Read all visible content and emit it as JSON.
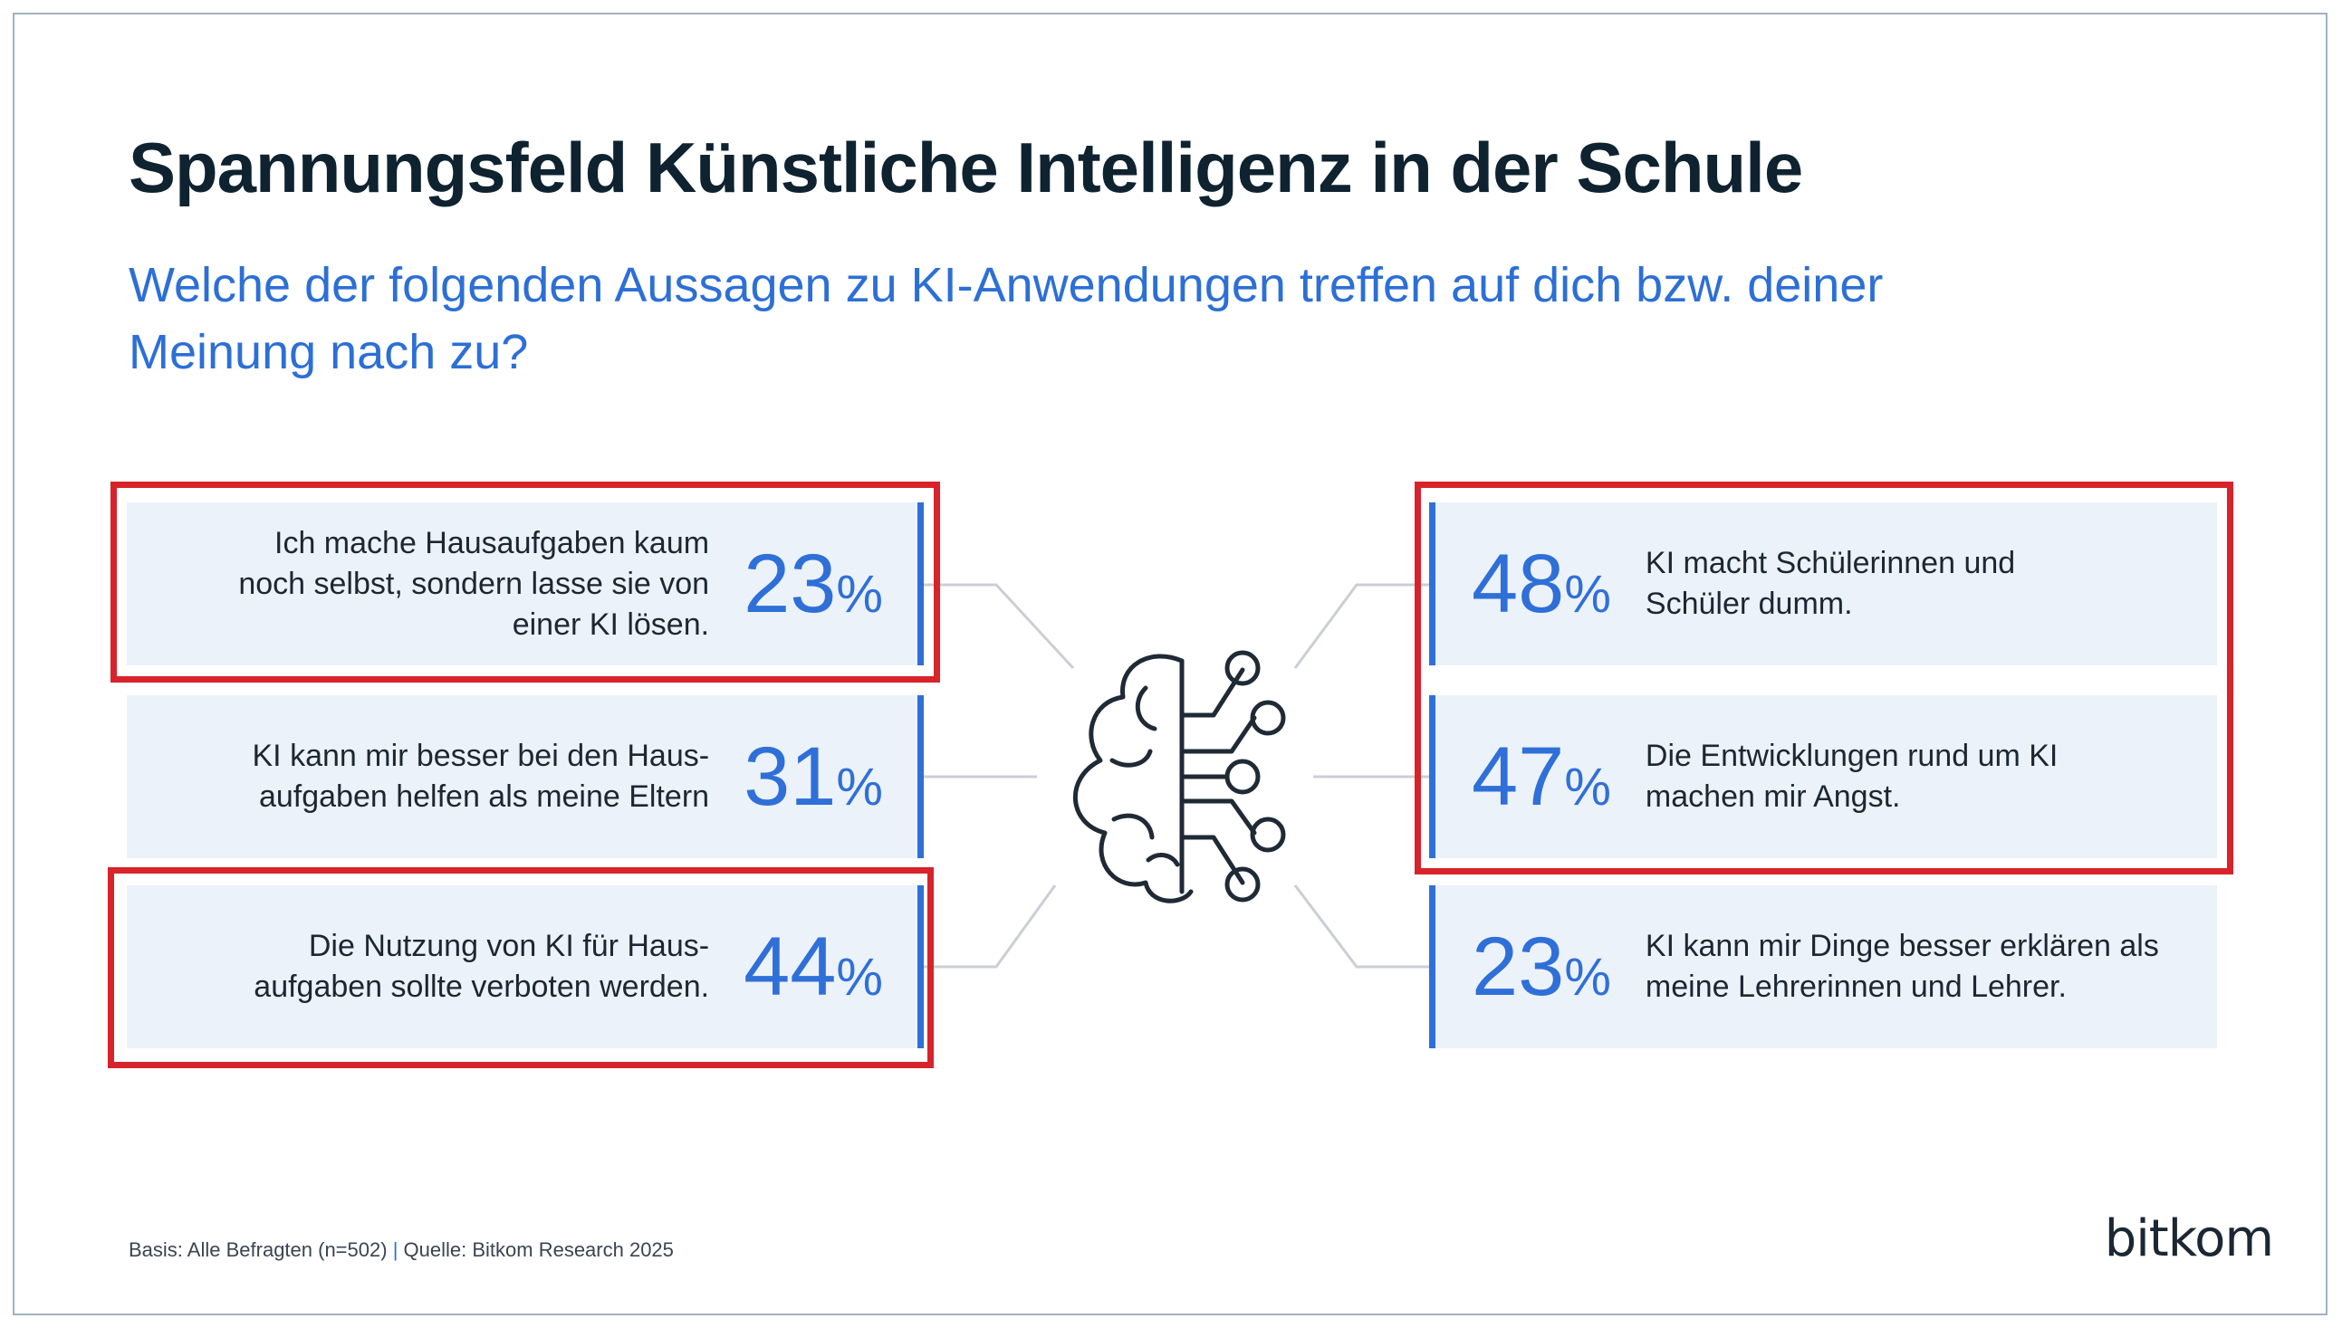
{
  "header": {
    "title": "Spannungsfeld Künstliche Intelligenz in der Schule",
    "subtitle": "Welche der folgenden Aussagen zu KI-Anwendungen treffen auf dich bzw. deiner Meinung nach zu?"
  },
  "chart_data": {
    "type": "table",
    "unit": "%",
    "left_items": [
      {
        "label": "Ich mache Hausaufgaben kaum noch selbst, sondern lasse sie von einer KI lösen.",
        "value": 23,
        "highlighted": true
      },
      {
        "label": "KI kann mir besser bei den Haus-aufgaben helfen als meine Eltern",
        "value": 31,
        "highlighted": false
      },
      {
        "label": "Die Nutzung von KI für Haus-aufgaben sollte verboten werden.",
        "value": 44,
        "highlighted": true
      }
    ],
    "right_items": [
      {
        "label": "KI macht Schülerinnen und Schüler dumm.",
        "value": 48,
        "highlighted": true
      },
      {
        "label": "Die Entwicklungen rund um KI machen mir Angst.",
        "value": 47,
        "highlighted": true
      },
      {
        "label": "KI kann mir Dinge besser erklären als meine Lehrerinnen und Lehrer.",
        "value": 23,
        "highlighted": false
      }
    ]
  },
  "icons": {
    "center": "brain-circuit-icon"
  },
  "colors": {
    "accent": "#2f6fd8",
    "card_bg": "#ecf2f9",
    "highlight": "#d8232a",
    "title": "#0f2230"
  },
  "footer": {
    "basis": "Basis: Alle Befragten (n=502)",
    "separator": "|",
    "source": "Quelle: Bitkom Research 2025",
    "logo": "bitkom"
  }
}
